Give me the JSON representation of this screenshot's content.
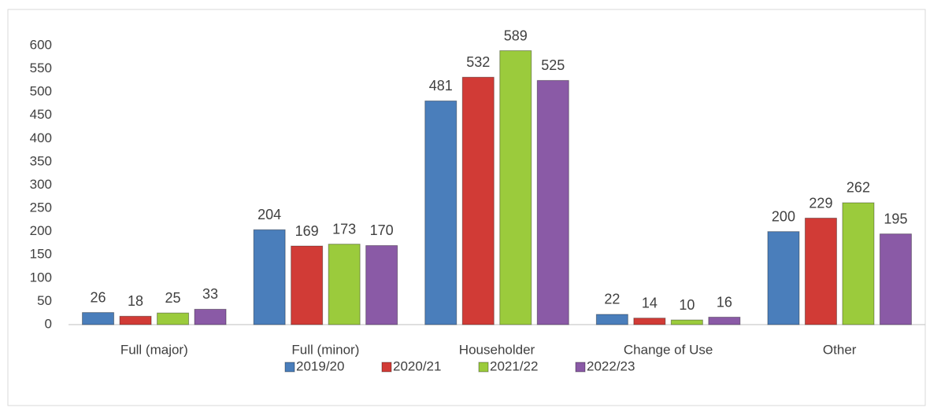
{
  "chart_data": {
    "type": "bar",
    "categories": [
      "Full (major)",
      "Full (minor)",
      "Householder",
      "Change of Use",
      "Other"
    ],
    "series": [
      {
        "name": "2019/20",
        "color": "#4a7ebb",
        "values": [
          26,
          204,
          481,
          22,
          200
        ]
      },
      {
        "name": "2020/21",
        "color": "#d13b36",
        "values": [
          18,
          169,
          532,
          14,
          229
        ]
      },
      {
        "name": "2021/22",
        "color": "#9bcb3c",
        "values": [
          25,
          173,
          589,
          10,
          262
        ]
      },
      {
        "name": "2022/23",
        "color": "#8a5aa6",
        "values": [
          33,
          170,
          525,
          16,
          195
        ]
      }
    ],
    "ylim": [
      0,
      600
    ],
    "yticks": [
      0,
      50,
      100,
      150,
      200,
      250,
      300,
      350,
      400,
      450,
      500,
      550,
      600
    ],
    "grid": false,
    "legend": "bottom",
    "data_labels": true
  }
}
